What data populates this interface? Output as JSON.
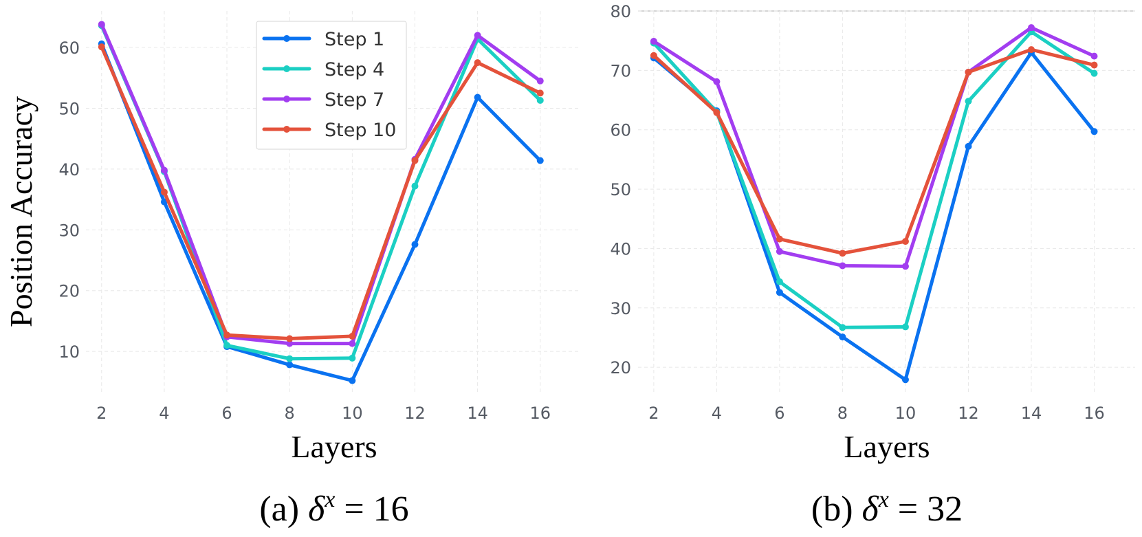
{
  "ylabel_shared": "Position Accuracy",
  "chart_data": [
    {
      "type": "line",
      "caption": {
        "prefix": "(a) ",
        "symbol": "δ",
        "sup": "x",
        "suffix": " = 16"
      },
      "xlabel": "Layers",
      "x": [
        2,
        4,
        6,
        8,
        10,
        12,
        14,
        16
      ],
      "xlim": [
        1.5,
        17.3
      ],
      "ylim": [
        3,
        66
      ],
      "yticks": [
        10,
        20,
        30,
        40,
        50,
        60
      ],
      "grid": true,
      "legend_position": "top-center",
      "series": [
        {
          "name": "Step 1",
          "color": "#0a72f0",
          "values": [
            60.6,
            34.6,
            10.8,
            7.8,
            5.2,
            27.6,
            51.8,
            41.4
          ]
        },
        {
          "name": "Step 4",
          "color": "#1bcfc3",
          "values": [
            63.6,
            39.6,
            11.0,
            8.8,
            8.9,
            37.2,
            61.4,
            51.3
          ]
        },
        {
          "name": "Step 7",
          "color": "#a23df0",
          "values": [
            63.8,
            39.8,
            12.4,
            11.3,
            11.3,
            41.6,
            62.0,
            54.5
          ]
        },
        {
          "name": "Step 10",
          "color": "#e4523b",
          "values": [
            60.1,
            36.2,
            12.7,
            12.1,
            12.5,
            41.4,
            57.5,
            52.5
          ]
        }
      ]
    },
    {
      "type": "line",
      "caption": {
        "prefix": "(b) ",
        "symbol": "δ",
        "sup": "x",
        "suffix": " = 32"
      },
      "xlabel": "Layers",
      "x": [
        2,
        4,
        6,
        8,
        10,
        12,
        14,
        16
      ],
      "xlim": [
        1.5,
        17.3
      ],
      "ylim": [
        15.5,
        80
      ],
      "yticks": [
        20,
        30,
        40,
        50,
        60,
        70,
        80
      ],
      "grid": true,
      "series": [
        {
          "name": "Step 1",
          "color": "#0a72f0",
          "values": [
            72.1,
            63.2,
            32.6,
            25.1,
            17.9,
            57.2,
            73.0,
            59.7
          ]
        },
        {
          "name": "Step 4",
          "color": "#1bcfc3",
          "values": [
            74.6,
            63.0,
            34.4,
            26.7,
            26.8,
            64.8,
            76.5,
            69.5
          ]
        },
        {
          "name": "Step 7",
          "color": "#a23df0",
          "values": [
            74.9,
            68.1,
            39.5,
            37.1,
            37.0,
            69.7,
            77.2,
            72.4
          ]
        },
        {
          "name": "Step 10",
          "color": "#e4523b",
          "values": [
            72.5,
            62.9,
            41.6,
            39.2,
            41.2,
            69.7,
            73.5,
            70.9
          ]
        }
      ]
    }
  ]
}
